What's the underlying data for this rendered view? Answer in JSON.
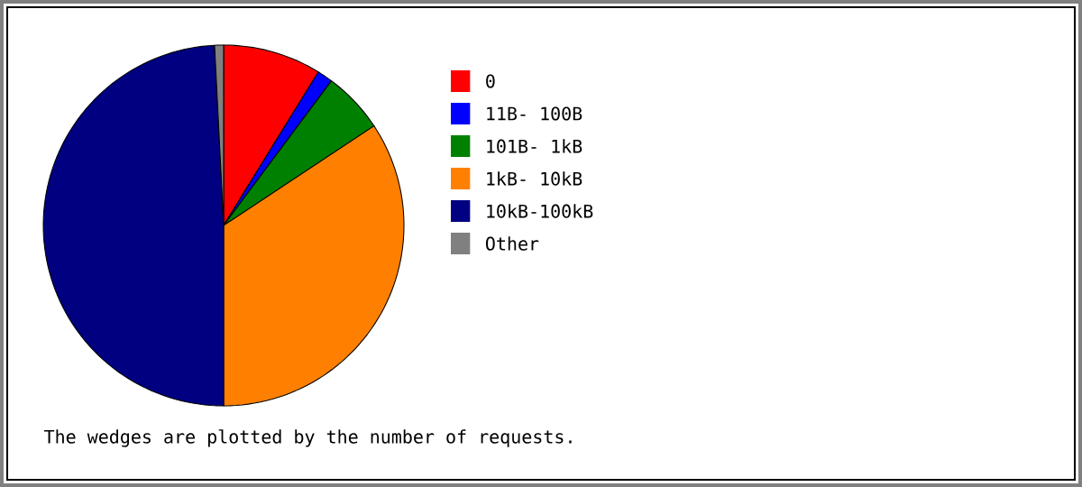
{
  "chart_data": {
    "type": "pie",
    "categories": [
      "0",
      "11B- 100B",
      "101B-  1kB",
      "1kB- 10kB",
      "10kB-100kB",
      "Other"
    ],
    "values": [
      8.8,
      1.4,
      5.5,
      34.3,
      49.2,
      0.8
    ],
    "colors": [
      "#ff0000",
      "#0000ff",
      "#008000",
      "#ff8000",
      "#000080",
      "#808080"
    ],
    "legend": "right",
    "annotations": [
      "The wedges are plotted by the number of requests."
    ]
  }
}
